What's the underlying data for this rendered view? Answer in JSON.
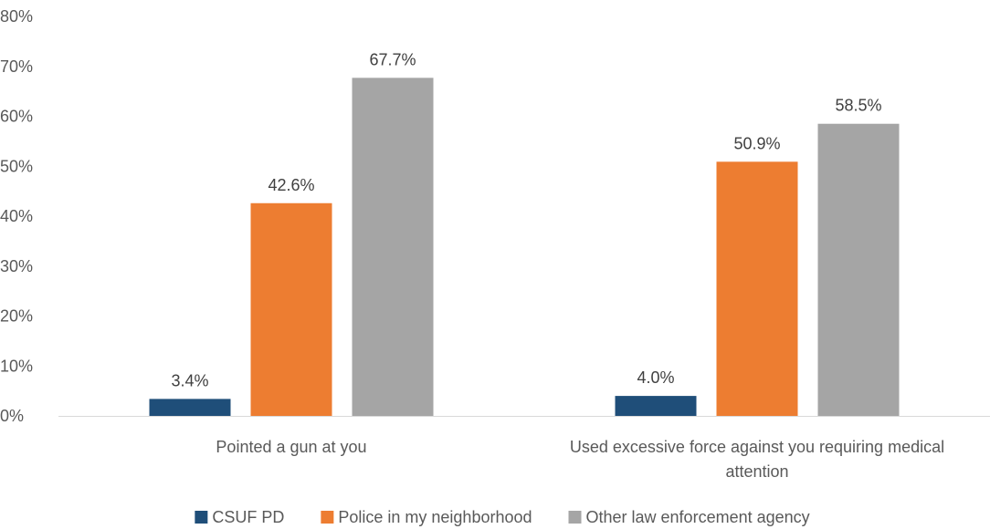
{
  "chart_data": {
    "type": "bar",
    "title": "",
    "xlabel": "",
    "ylabel": "",
    "ylim": [
      0,
      80
    ],
    "y_ticks": [
      0,
      10,
      20,
      30,
      40,
      50,
      60,
      70,
      80
    ],
    "y_tick_labels": [
      "0%",
      "10%",
      "20%",
      "30%",
      "40%",
      "50%",
      "60%",
      "70%",
      "80%"
    ],
    "categories": [
      [
        "Pointed a gun at you"
      ],
      [
        "Used excessive force against you requiring medical",
        "attention"
      ]
    ],
    "series": [
      {
        "name": "CSUF PD",
        "color": "#1f4e79",
        "values": [
          3.4,
          4.0
        ],
        "labels": [
          "3.4%",
          "4.0%"
        ]
      },
      {
        "name": "Police in my neighborhood",
        "color": "#ed7d31",
        "values": [
          42.6,
          50.9
        ],
        "labels": [
          "42.6%",
          "50.9%"
        ]
      },
      {
        "name": "Other law enforcement agency",
        "color": "#a5a5a5",
        "values": [
          67.7,
          58.5
        ],
        "labels": [
          "67.7%",
          "58.5%"
        ]
      }
    ],
    "legend_position": "bottom",
    "grid": false
  }
}
